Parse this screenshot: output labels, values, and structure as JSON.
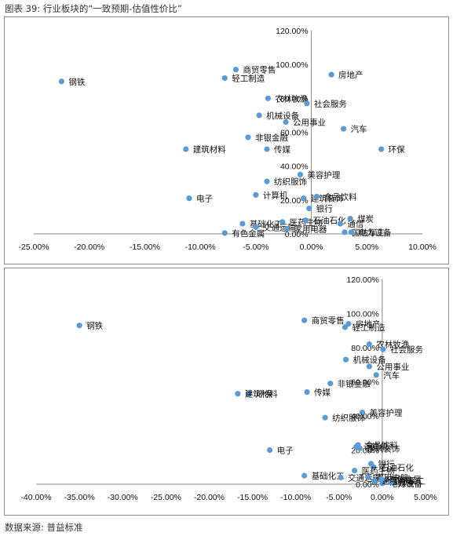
{
  "figure": {
    "title": "图表 39: 行业板块的“一致预期-估值性价比”",
    "source": "数据来源: 普益标准"
  },
  "colors": {
    "point": "#5b9bd5",
    "axis": "#888888",
    "leader": "#7f7f7f"
  },
  "chart_data": [
    {
      "type": "scatter",
      "xlim": [
        -25,
        10
      ],
      "ylim": [
        0,
        120
      ],
      "x_ticks": [
        "-25.00%",
        "-20.00%",
        "-15.00%",
        "-10.00%",
        "-5.00%",
        "0.00%",
        "5.00%",
        "10.00%"
      ],
      "y_ticks": [
        "0.00%",
        "20.00%",
        "40.00%",
        "60.00%",
        "80.00%",
        "100.00%",
        "120.00%"
      ],
      "grid": false,
      "points": [
        {
          "label": "钢铁",
          "x": -22.5,
          "y": 90
        },
        {
          "label": "商贸零售",
          "x": -6.8,
          "y": 97
        },
        {
          "label": "轻工制造",
          "x": -7.8,
          "y": 92
        },
        {
          "label": "房地产",
          "x": 1.8,
          "y": 94
        },
        {
          "label": "农林牧渔",
          "x": -3.9,
          "y": 80
        },
        {
          "label": "社会服务",
          "x": -0.4,
          "y": 77
        },
        {
          "label": "机械设备",
          "x": -4.7,
          "y": 70
        },
        {
          "label": "公用事业",
          "x": -2.3,
          "y": 66
        },
        {
          "label": "汽车",
          "x": 2.9,
          "y": 62
        },
        {
          "label": "非银金融",
          "x": -5.7,
          "y": 57
        },
        {
          "label": "建筑材料",
          "x": -11.3,
          "y": 50
        },
        {
          "label": "传媒",
          "x": -4.0,
          "y": 50
        },
        {
          "label": "环保",
          "x": 6.3,
          "y": 50
        },
        {
          "label": "美容护理",
          "x": -1.0,
          "y": 35
        },
        {
          "label": "纺织服饰",
          "x": -4.0,
          "y": 31
        },
        {
          "label": "电子",
          "x": -11.0,
          "y": 21
        },
        {
          "label": "计算机",
          "x": -5.0,
          "y": 23
        },
        {
          "label": "建筑装饰",
          "x": -0.7,
          "y": 21
        },
        {
          "label": "食品饮料",
          "x": 0.5,
          "y": 22
        },
        {
          "label": "银行",
          "x": -0.2,
          "y": 15
        },
        {
          "label": "基础化工",
          "x": -6.2,
          "y": 6
        },
        {
          "label": "医药生物",
          "x": -2.6,
          "y": 7
        },
        {
          "label": "石油石化",
          "x": -0.5,
          "y": 8
        },
        {
          "label": "通信",
          "x": 2.6,
          "y": 6
        },
        {
          "label": "煤炭",
          "x": 3.5,
          "y": 9
        },
        {
          "label": "交通运输",
          "x": -5.0,
          "y": 4
        },
        {
          "label": "家用电器",
          "x": -2.2,
          "y": 3
        },
        {
          "label": "国防军工",
          "x": 3.0,
          "y": 1
        },
        {
          "label": "电力设备",
          "x": 3.6,
          "y": 1
        },
        {
          "label": "有色金属",
          "x": -7.8,
          "y": 0.5
        }
      ]
    },
    {
      "type": "scatter",
      "xlim": [
        -40,
        5
      ],
      "ylim": [
        0,
        120
      ],
      "x_ticks": [
        "-40.00%",
        "-35.00%",
        "-30.00%",
        "-25.00%",
        "-20.00%",
        "-15.00%",
        "-10.00%",
        "-5.00%",
        "0.00%",
        "5.00%"
      ],
      "y_ticks": [
        "0.00%",
        "20.00%",
        "40.00%",
        "60.00%",
        "80.00%",
        "100.00%",
        "120.00%"
      ],
      "grid": false,
      "points": [
        {
          "label": "钢铁",
          "x": -35,
          "y": 93
        },
        {
          "label": "商贸零售",
          "x": -9.0,
          "y": 96
        },
        {
          "label": "房地产",
          "x": -3.9,
          "y": 94
        },
        {
          "label": "轻工制造",
          "x": -4.3,
          "y": 92
        },
        {
          "label": "农林牧渔",
          "x": -1.5,
          "y": 82
        },
        {
          "label": "社会服务",
          "x": 0.1,
          "y": 79
        },
        {
          "label": "机械设备",
          "x": -4.2,
          "y": 73
        },
        {
          "label": "公用事业",
          "x": -1.5,
          "y": 69
        },
        {
          "label": "汽车",
          "x": -0.7,
          "y": 64
        },
        {
          "label": "非银金融",
          "x": -6.0,
          "y": 59
        },
        {
          "label": "环保",
          "x": -15.4,
          "y": 53
        },
        {
          "label": "建筑材料",
          "x": -16.7,
          "y": 53
        },
        {
          "label": "传媒",
          "x": -8.7,
          "y": 54
        },
        {
          "label": "美容护理",
          "x": -2.3,
          "y": 42
        },
        {
          "label": "纺织服饰",
          "x": -6.6,
          "y": 39
        },
        {
          "label": "电子",
          "x": -13.0,
          "y": 20
        },
        {
          "label": "计算机",
          "x": -3.0,
          "y": 22
        },
        {
          "label": "建筑装饰",
          "x": -2.6,
          "y": 21
        },
        {
          "label": "食品饮料",
          "x": -2.8,
          "y": 23
        },
        {
          "label": "银行",
          "x": -1.3,
          "y": 12
        },
        {
          "label": "基础化工",
          "x": -9.0,
          "y": 5
        },
        {
          "label": "石油石化",
          "x": -1.0,
          "y": 10
        },
        {
          "label": "医药生物",
          "x": -3.2,
          "y": 8
        },
        {
          "label": "交通运输",
          "x": -4.8,
          "y": 4
        },
        {
          "label": "家用电器",
          "x": -1.6,
          "y": 4
        },
        {
          "label": "国防军工",
          "x": 0.2,
          "y": 2
        },
        {
          "label": "电力设备",
          "x": 0.0,
          "y": 0.5
        },
        {
          "label": "通信",
          "x": -0.9,
          "y": 2
        },
        {
          "label": "煤炭",
          "x": 1.0,
          "y": 1
        },
        {
          "label": "有色金属",
          "x": -0.1,
          "y": 3
        }
      ]
    }
  ]
}
